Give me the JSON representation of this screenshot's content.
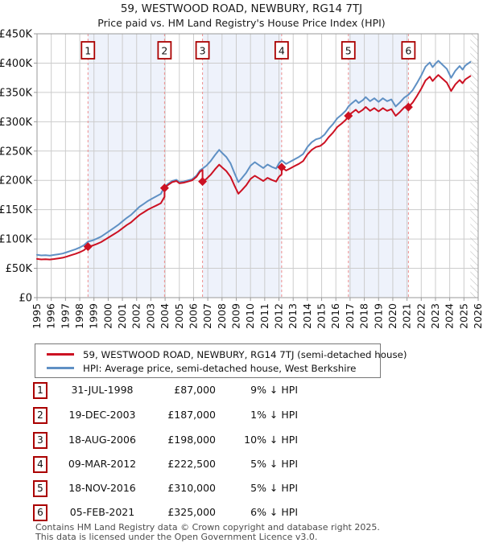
{
  "title": "59, WESTWOOD ROAD, NEWBURY, RG14 7TJ",
  "subtitle": "Price paid vs. HM Land Registry's House Price Index (HPI)",
  "legend": [
    {
      "label": "59, WESTWOOD ROAD, NEWBURY, RG14 7TJ (semi-detached house)",
      "color": "#cc1122"
    },
    {
      "label": "HPI: Average price, semi-detached house, West Berkshire",
      "color": "#5f90c4"
    }
  ],
  "chart_data": {
    "type": "line",
    "values_unit": "GBP_thousands",
    "x_range": [
      1995,
      2026
    ],
    "y_range": [
      0,
      450
    ],
    "y_tick_step": 50,
    "y_tick_labels": [
      "£0",
      "£50K",
      "£100K",
      "£150K",
      "£200K",
      "£250K",
      "£300K",
      "£350K",
      "£400K",
      "£450K"
    ],
    "x_tick_labels": [
      "1995",
      "1996",
      "1997",
      "1998",
      "1999",
      "2000",
      "2001",
      "2002",
      "2003",
      "2004",
      "2005",
      "2006",
      "2007",
      "2008",
      "2009",
      "2010",
      "2011",
      "2012",
      "2013",
      "2014",
      "2015",
      "2016",
      "2017",
      "2018",
      "2019",
      "2020",
      "2021",
      "2022",
      "2023",
      "2024",
      "2025",
      "2026"
    ],
    "grid": true,
    "legend_position": "bottom",
    "hatch_start": 2025.45,
    "ownership_bands": [
      [
        1998.58,
        2003.96
      ],
      [
        2006.63,
        2012.19
      ],
      [
        2016.88,
        2021.1
      ]
    ],
    "colors": {
      "property_line": "#cc1122",
      "hpi_line": "#5f90c4",
      "band_fill": "#eef2fb",
      "gridline": "#cccccc",
      "plot_border": "#999999",
      "sale_dashed_line": "#ee8f8f",
      "sale_box_border": "#aa0000",
      "hatch": "#bbbbbb"
    },
    "sales": [
      {
        "n": "1",
        "date": "31-JUL-1998",
        "year": 1998.58,
        "price": 87000,
        "delta_label": "9% ↓ HPI"
      },
      {
        "n": "2",
        "date": "19-DEC-2003",
        "year": 2003.96,
        "price": 187000,
        "delta_label": "1% ↓ HPI"
      },
      {
        "n": "3",
        "date": "18-AUG-2006",
        "year": 2006.63,
        "price": 198000,
        "delta_label": "10% ↓ HPI"
      },
      {
        "n": "4",
        "date": "09-MAR-2012",
        "year": 2012.19,
        "price": 222500,
        "delta_label": "5% ↓ HPI"
      },
      {
        "n": "5",
        "date": "18-NOV-2016",
        "year": 2016.88,
        "price": 310000,
        "delta_label": "5% ↓ HPI"
      },
      {
        "n": "6",
        "date": "05-FEB-2021",
        "year": 2021.1,
        "price": 325000,
        "delta_label": "6% ↓ HPI"
      }
    ],
    "series": [
      {
        "name": "HPI: Average price, semi-detached house, West Berkshire",
        "color": "#5f90c4",
        "points": [
          [
            1995.0,
            73
          ],
          [
            1995.3,
            72
          ],
          [
            1995.6,
            72.5
          ],
          [
            1995.9,
            71.8
          ],
          [
            1996.2,
            72.8
          ],
          [
            1996.5,
            74
          ],
          [
            1996.8,
            75.2
          ],
          [
            1997.1,
            77.5
          ],
          [
            1997.4,
            80
          ],
          [
            1997.7,
            82.5
          ],
          [
            1998.0,
            85.5
          ],
          [
            1998.3,
            89.5
          ],
          [
            1998.58,
            95.5
          ],
          [
            1998.9,
            97.5
          ],
          [
            1999.2,
            100.5
          ],
          [
            1999.5,
            104
          ],
          [
            1999.8,
            109
          ],
          [
            2000.1,
            114
          ],
          [
            2000.4,
            119
          ],
          [
            2000.7,
            124
          ],
          [
            2001.0,
            130
          ],
          [
            2001.3,
            136
          ],
          [
            2001.6,
            141
          ],
          [
            2001.9,
            148
          ],
          [
            2002.2,
            155
          ],
          [
            2002.5,
            160
          ],
          [
            2002.8,
            165
          ],
          [
            2003.1,
            169
          ],
          [
            2003.4,
            173
          ],
          [
            2003.7,
            177
          ],
          [
            2003.96,
            189
          ],
          [
            2004.2,
            194
          ],
          [
            2004.5,
            199
          ],
          [
            2004.8,
            201
          ],
          [
            2005.0,
            197
          ],
          [
            2005.3,
            198
          ],
          [
            2005.6,
            200
          ],
          [
            2005.9,
            202
          ],
          [
            2006.2,
            208
          ],
          [
            2006.45,
            217
          ],
          [
            2006.63,
            220
          ],
          [
            2006.9,
            225
          ],
          [
            2007.2,
            233
          ],
          [
            2007.5,
            243
          ],
          [
            2007.8,
            252
          ],
          [
            2008.0,
            247
          ],
          [
            2008.3,
            240
          ],
          [
            2008.6,
            229
          ],
          [
            2008.9,
            211
          ],
          [
            2009.15,
            197
          ],
          [
            2009.4,
            204
          ],
          [
            2009.7,
            213
          ],
          [
            2010.0,
            225
          ],
          [
            2010.3,
            231
          ],
          [
            2010.6,
            226
          ],
          [
            2010.9,
            221
          ],
          [
            2011.2,
            227
          ],
          [
            2011.5,
            223
          ],
          [
            2011.8,
            220
          ],
          [
            2012.0,
            229
          ],
          [
            2012.19,
            234
          ],
          [
            2012.5,
            228
          ],
          [
            2012.8,
            232
          ],
          [
            2013.1,
            236
          ],
          [
            2013.4,
            240
          ],
          [
            2013.7,
            245
          ],
          [
            2014.0,
            257
          ],
          [
            2014.3,
            265
          ],
          [
            2014.6,
            270
          ],
          [
            2014.9,
            272
          ],
          [
            2015.2,
            278
          ],
          [
            2015.5,
            288
          ],
          [
            2015.8,
            296
          ],
          [
            2016.1,
            306
          ],
          [
            2016.4,
            312
          ],
          [
            2016.7,
            319
          ],
          [
            2016.88,
            326
          ],
          [
            2017.1,
            331
          ],
          [
            2017.4,
            337
          ],
          [
            2017.6,
            332
          ],
          [
            2017.9,
            337
          ],
          [
            2018.1,
            342
          ],
          [
            2018.4,
            335
          ],
          [
            2018.7,
            340
          ],
          [
            2019.0,
            334
          ],
          [
            2019.3,
            340
          ],
          [
            2019.6,
            335
          ],
          [
            2019.9,
            338
          ],
          [
            2020.2,
            326
          ],
          [
            2020.5,
            333
          ],
          [
            2020.8,
            341
          ],
          [
            2021.1,
            346
          ],
          [
            2021.4,
            354
          ],
          [
            2021.7,
            366
          ],
          [
            2022.0,
            379
          ],
          [
            2022.3,
            394
          ],
          [
            2022.6,
            401
          ],
          [
            2022.8,
            393
          ],
          [
            2023.0,
            399
          ],
          [
            2023.2,
            404
          ],
          [
            2023.5,
            397
          ],
          [
            2023.8,
            390
          ],
          [
            2024.1,
            375
          ],
          [
            2024.4,
            387
          ],
          [
            2024.7,
            395
          ],
          [
            2024.9,
            389
          ],
          [
            2025.1,
            396
          ],
          [
            2025.45,
            402
          ]
        ]
      },
      {
        "name": "59, WESTWOOD ROAD, NEWBURY, RG14 7TJ (semi-detached house)",
        "color": "#cc1122",
        "points": [
          [
            1995.0,
            66
          ],
          [
            1995.3,
            65.2
          ],
          [
            1995.6,
            65.6
          ],
          [
            1995.9,
            65
          ],
          [
            1996.2,
            65.9
          ],
          [
            1996.5,
            67
          ],
          [
            1996.8,
            68.1
          ],
          [
            1997.1,
            70.1
          ],
          [
            1997.4,
            72.4
          ],
          [
            1997.7,
            74.7
          ],
          [
            1998.0,
            77.4
          ],
          [
            1998.3,
            81
          ],
          [
            1998.58,
            87
          ],
          [
            1998.9,
            88.7
          ],
          [
            1999.2,
            91.5
          ],
          [
            1999.5,
            94.6
          ],
          [
            1999.8,
            99.2
          ],
          [
            2000.1,
            103.7
          ],
          [
            2000.4,
            108.3
          ],
          [
            2000.7,
            112.8
          ],
          [
            2001.0,
            118.3
          ],
          [
            2001.3,
            123.8
          ],
          [
            2001.6,
            128.3
          ],
          [
            2001.9,
            134.7
          ],
          [
            2002.2,
            141.1
          ],
          [
            2002.5,
            145.6
          ],
          [
            2002.8,
            150.2
          ],
          [
            2003.1,
            153.8
          ],
          [
            2003.4,
            157.4
          ],
          [
            2003.7,
            161.1
          ],
          [
            2003.96,
            172
          ],
          [
            2003.96,
            187
          ],
          [
            2004.2,
            192.1
          ],
          [
            2004.5,
            197
          ],
          [
            2004.8,
            199
          ],
          [
            2005.0,
            195
          ],
          [
            2005.3,
            196
          ],
          [
            2005.6,
            198
          ],
          [
            2005.9,
            200
          ],
          [
            2006.2,
            205.9
          ],
          [
            2006.45,
            214.8
          ],
          [
            2006.63,
            217.8
          ],
          [
            2006.63,
            198
          ],
          [
            2006.9,
            202.5
          ],
          [
            2007.2,
            209.7
          ],
          [
            2007.5,
            218.7
          ],
          [
            2007.8,
            226.8
          ],
          [
            2008.0,
            222.3
          ],
          [
            2008.3,
            216
          ],
          [
            2008.6,
            206.1
          ],
          [
            2008.9,
            189.9
          ],
          [
            2009.15,
            177.3
          ],
          [
            2009.4,
            183.6
          ],
          [
            2009.7,
            191.7
          ],
          [
            2010.0,
            202.5
          ],
          [
            2010.3,
            207.9
          ],
          [
            2010.6,
            203.4
          ],
          [
            2010.9,
            198.9
          ],
          [
            2011.2,
            204.3
          ],
          [
            2011.5,
            200.7
          ],
          [
            2011.8,
            198
          ],
          [
            2012.0,
            206.1
          ],
          [
            2012.19,
            210.6
          ],
          [
            2012.19,
            222.5
          ],
          [
            2012.5,
            216.8
          ],
          [
            2012.8,
            220.6
          ],
          [
            2013.1,
            224.4
          ],
          [
            2013.4,
            228.2
          ],
          [
            2013.7,
            233
          ],
          [
            2014.0,
            244.4
          ],
          [
            2014.3,
            252
          ],
          [
            2014.6,
            256.8
          ],
          [
            2014.9,
            258.7
          ],
          [
            2015.2,
            264.4
          ],
          [
            2015.5,
            273.9
          ],
          [
            2015.8,
            281.5
          ],
          [
            2016.1,
            291
          ],
          [
            2016.4,
            296.7
          ],
          [
            2016.7,
            303.4
          ],
          [
            2016.88,
            310
          ],
          [
            2017.1,
            314.8
          ],
          [
            2017.4,
            320.5
          ],
          [
            2017.6,
            315.7
          ],
          [
            2017.9,
            320.5
          ],
          [
            2018.1,
            325.2
          ],
          [
            2018.4,
            318.6
          ],
          [
            2018.7,
            323.3
          ],
          [
            2019.0,
            317.6
          ],
          [
            2019.3,
            323.3
          ],
          [
            2019.6,
            318.6
          ],
          [
            2019.9,
            321.4
          ],
          [
            2020.2,
            310
          ],
          [
            2020.5,
            316.7
          ],
          [
            2020.8,
            324.3
          ],
          [
            2021.1,
            329
          ],
          [
            2021.1,
            325
          ],
          [
            2021.4,
            332.8
          ],
          [
            2021.7,
            344
          ],
          [
            2022.0,
            356.3
          ],
          [
            2022.3,
            370.4
          ],
          [
            2022.6,
            376.9
          ],
          [
            2022.8,
            369.4
          ],
          [
            2023.0,
            375.1
          ],
          [
            2023.2,
            379.8
          ],
          [
            2023.5,
            373.2
          ],
          [
            2023.8,
            366.6
          ],
          [
            2024.1,
            352.5
          ],
          [
            2024.4,
            363.8
          ],
          [
            2024.7,
            371.3
          ],
          [
            2024.9,
            365.7
          ],
          [
            2025.1,
            372.2
          ],
          [
            2025.45,
            377.9
          ]
        ]
      }
    ]
  },
  "table": {
    "rows": [
      {
        "num": "1",
        "date": "31-JUL-1998",
        "price": "£87,000",
        "delta": "9% ↓ HPI"
      },
      {
        "num": "2",
        "date": "19-DEC-2003",
        "price": "£187,000",
        "delta": "1% ↓ HPI"
      },
      {
        "num": "3",
        "date": "18-AUG-2006",
        "price": "£198,000",
        "delta": "10% ↓ HPI"
      },
      {
        "num": "4",
        "date": "09-MAR-2012",
        "price": "£222,500",
        "delta": "5% ↓ HPI"
      },
      {
        "num": "5",
        "date": "18-NOV-2016",
        "price": "£310,000",
        "delta": "5% ↓ HPI"
      },
      {
        "num": "6",
        "date": "05-FEB-2021",
        "price": "£325,000",
        "delta": "6% ↓ HPI"
      }
    ]
  },
  "footer": {
    "line1": "Contains HM Land Registry data © Crown copyright and database right 2025.",
    "line2": "This data is licensed under the Open Government Licence v3.0."
  }
}
